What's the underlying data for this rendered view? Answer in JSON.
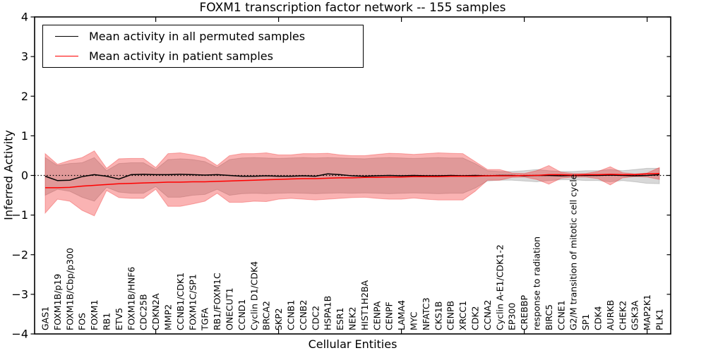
{
  "title": "FOXM1 transcription factor network -- 155 samples",
  "axes": {
    "ylabel": "Inferred Activity",
    "xlabel": "Cellular Entities",
    "yticks": [
      {
        "value": 4,
        "label": "4"
      },
      {
        "value": 3,
        "label": "3"
      },
      {
        "value": 2,
        "label": "2"
      },
      {
        "value": 1,
        "label": "1"
      },
      {
        "value": 0,
        "label": "0"
      },
      {
        "value": -1,
        "label": "−1"
      },
      {
        "value": -2,
        "label": "−2"
      },
      {
        "value": -3,
        "label": "−3"
      },
      {
        "value": -4,
        "label": "−4"
      }
    ]
  },
  "legend": {
    "entries": [
      {
        "label": "Mean activity in all permuted samples",
        "color": "#000000"
      },
      {
        "label": "Mean activity in patient samples",
        "color": "#ff0000"
      }
    ]
  },
  "colors": {
    "permuted_line": "#000000",
    "patient_line": "#ff0000",
    "permuted_band": "rgba(60,60,60,0.20)",
    "patient_band": "rgba(242,38,38,0.35)",
    "zero_line": "#000000"
  },
  "chart_data": {
    "type": "line",
    "title": "FOXM1 transcription factor network -- 155 samples",
    "xlabel": "Cellular Entities",
    "ylabel": "Inferred Activity",
    "ylim": [
      -4,
      4
    ],
    "zero_line_dotted": true,
    "legend_position": "upper left",
    "grid": false,
    "major_x_tick_indices": [
      9,
      19,
      29,
      39,
      49
    ],
    "categories": [
      "GAS1",
      "FOXM1B/p19",
      "FOXM1B/Cbp/p300",
      "FOS",
      "FOXM1",
      "RB1",
      "ETV5",
      "FOXM1B/HNF6",
      "CDC25B",
      "CDKN2A",
      "MMP2",
      "CCNB1/CDK1",
      "FOXM1C/SP1",
      "TGFA",
      "RB1/FOXM1C",
      "ONECUT1",
      "CCND1",
      "Cyclin D1/CDK4",
      "BRCA2",
      "SKP2",
      "CCNB1",
      "CCNB2",
      "CDC2",
      "HSPA1B",
      "ESR1",
      "NEK2",
      "HIST1H2BA",
      "CENPA",
      "CENPF",
      "LAMA4",
      "MYC",
      "NFATC3",
      "CKS1B",
      "CENPB",
      "XRCC1",
      "CDK2",
      "CCNA2",
      "Cyclin A-E1/CDK1-2",
      "EP300",
      "CREBBP",
      "response to radiation",
      "BIRC5",
      "CCNE1",
      "G2/M transition of mitotic cell cycle",
      "SP1",
      "CDK4",
      "AURKB",
      "CHEK2",
      "GSK3A",
      "MAP2K1",
      "PLK1"
    ],
    "series": [
      {
        "name": "Mean activity in all permuted samples",
        "values": [
          -0.02,
          -0.13,
          -0.12,
          -0.03,
          0.02,
          -0.02,
          -0.09,
          0.02,
          0.03,
          0.02,
          0.02,
          0.03,
          0.02,
          0.01,
          0.02,
          0.0,
          -0.02,
          -0.02,
          -0.01,
          -0.02,
          -0.02,
          -0.01,
          -0.02,
          0.04,
          0.02,
          -0.01,
          -0.02,
          -0.01,
          0.0,
          -0.01,
          0.0,
          -0.01,
          -0.01,
          0.0,
          -0.01,
          0.0,
          -0.01,
          0.0,
          0.0,
          -0.01,
          0.0,
          0.0,
          -0.01,
          0.0,
          0.0,
          0.0,
          0.01,
          0.0,
          -0.01,
          0.0,
          0.02
        ]
      },
      {
        "name": "Mean activity in patient samples",
        "values": [
          -0.31,
          -0.31,
          -0.3,
          -0.27,
          -0.25,
          -0.23,
          -0.21,
          -0.2,
          -0.19,
          -0.18,
          -0.17,
          -0.17,
          -0.16,
          -0.16,
          -0.15,
          -0.14,
          -0.13,
          -0.12,
          -0.11,
          -0.1,
          -0.09,
          -0.08,
          -0.08,
          -0.07,
          -0.06,
          -0.06,
          -0.05,
          -0.05,
          -0.04,
          -0.04,
          -0.03,
          -0.03,
          -0.03,
          -0.02,
          -0.02,
          -0.02,
          -0.01,
          -0.01,
          -0.01,
          0.0,
          0.0,
          0.02,
          0.02,
          0.01,
          0.02,
          0.02,
          0.03,
          0.02,
          0.02,
          0.04,
          0.05
        ]
      }
    ],
    "bands": [
      {
        "name": "permuted-std-band",
        "upper": [
          0.45,
          0.25,
          0.3,
          0.32,
          0.45,
          0.12,
          0.3,
          0.32,
          0.32,
          0.15,
          0.4,
          0.42,
          0.4,
          0.35,
          0.2,
          0.4,
          0.44,
          0.45,
          0.44,
          0.43,
          0.44,
          0.45,
          0.44,
          0.45,
          0.44,
          0.43,
          0.42,
          0.44,
          0.45,
          0.44,
          0.43,
          0.44,
          0.45,
          0.44,
          0.44,
          0.3,
          0.12,
          0.1,
          0.1,
          0.12,
          0.15,
          0.12,
          0.1,
          0.1,
          0.12,
          0.12,
          0.15,
          0.12,
          0.15,
          0.18,
          0.18
        ],
        "lower": [
          -0.5,
          -0.35,
          -0.4,
          -0.55,
          -0.65,
          -0.3,
          -0.42,
          -0.45,
          -0.45,
          -0.28,
          -0.55,
          -0.55,
          -0.5,
          -0.48,
          -0.35,
          -0.5,
          -0.46,
          -0.45,
          -0.46,
          -0.45,
          -0.44,
          -0.45,
          -0.46,
          -0.45,
          -0.44,
          -0.45,
          -0.44,
          -0.45,
          -0.46,
          -0.45,
          -0.44,
          -0.45,
          -0.46,
          -0.45,
          -0.45,
          -0.32,
          -0.14,
          -0.12,
          -0.12,
          -0.14,
          -0.16,
          -0.13,
          -0.11,
          -0.11,
          -0.13,
          -0.13,
          -0.16,
          -0.13,
          -0.16,
          -0.2,
          -0.21
        ]
      },
      {
        "name": "patient-std-band",
        "upper": [
          0.55,
          0.28,
          0.38,
          0.45,
          0.62,
          0.18,
          0.42,
          0.43,
          0.43,
          0.2,
          0.55,
          0.57,
          0.52,
          0.45,
          0.25,
          0.5,
          0.55,
          0.55,
          0.57,
          0.52,
          0.52,
          0.55,
          0.55,
          0.56,
          0.52,
          0.5,
          0.5,
          0.53,
          0.56,
          0.55,
          0.53,
          0.55,
          0.57,
          0.56,
          0.55,
          0.35,
          0.15,
          0.15,
          0.06,
          0.05,
          0.12,
          0.25,
          0.08,
          0.05,
          0.05,
          0.1,
          0.22,
          0.07,
          0.04,
          0.06,
          0.2
        ],
        "lower": [
          -0.95,
          -0.6,
          -0.65,
          -0.88,
          -1.02,
          -0.38,
          -0.56,
          -0.58,
          -0.58,
          -0.35,
          -0.78,
          -0.78,
          -0.72,
          -0.65,
          -0.45,
          -0.68,
          -0.68,
          -0.65,
          -0.66,
          -0.6,
          -0.58,
          -0.6,
          -0.62,
          -0.6,
          -0.58,
          -0.56,
          -0.55,
          -0.58,
          -0.6,
          -0.6,
          -0.57,
          -0.6,
          -0.62,
          -0.62,
          -0.62,
          -0.4,
          -0.12,
          -0.12,
          -0.05,
          -0.04,
          -0.1,
          -0.22,
          -0.07,
          -0.04,
          -0.04,
          -0.08,
          -0.24,
          -0.06,
          -0.03,
          -0.04,
          -0.1
        ]
      }
    ]
  }
}
